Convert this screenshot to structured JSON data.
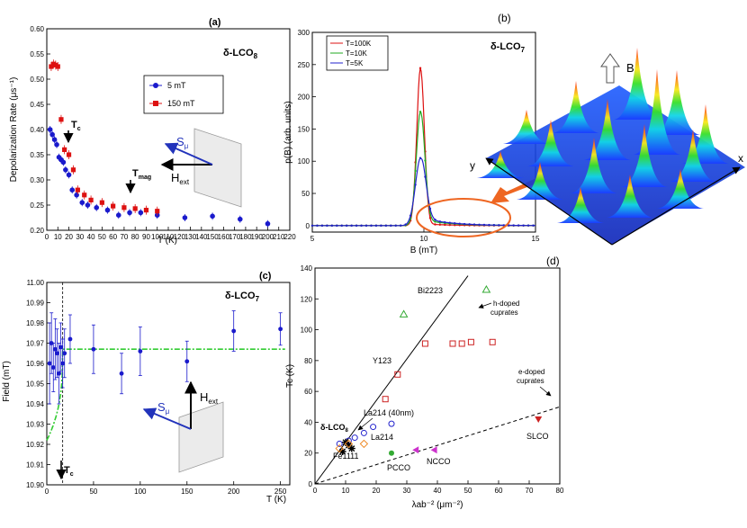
{
  "figure": {
    "panels": {
      "a": {
        "label": "(a)",
        "title": "δ-LCO",
        "title_sub": "8",
        "xlabel": "T (K)",
        "ylabel": "Depolarization Rate (μs⁻¹)",
        "legend": [
          "5 mT",
          "150 mT"
        ],
        "annotations": {
          "tc": "T",
          "tc_sub": "c",
          "tmag": "T",
          "tmag_sub": "mag",
          "s": "S",
          "s_sub": "μ",
          "h": "H",
          "h_sub": "ext"
        }
      },
      "b": {
        "label": "(b)",
        "title": "δ-LCO",
        "title_sub": "7",
        "xlabel": "B (mT)",
        "ylabel": "p(B) (arb. units)",
        "legend": [
          "T=100K",
          "T=10K",
          "T=5K"
        ],
        "annotations": {
          "b": "B",
          "x": "x",
          "y": "y"
        }
      },
      "c": {
        "label": "(c)",
        "title": "δ-LCO",
        "title_sub": "7",
        "xlabel": "T (K)",
        "ylabel": "Field (mT)",
        "annotations": {
          "tc": "T",
          "tc_sub": "c",
          "s": "S",
          "s_sub": "μ",
          "h": "H",
          "h_sub": "ext"
        }
      },
      "d": {
        "label": "(d)",
        "xlabel": "λab⁻² (μm⁻²)",
        "ylabel": "Tc (K)",
        "annotations": {
          "h_doped_1": "h-doped",
          "h_doped_2": "cuprates",
          "e_doped_1": "e-doped",
          "e_doped_2": "cuprates",
          "bi2223": "Bi2223",
          "y123": "Y123",
          "la214_40": "La214 (40nm)",
          "la214": "La214",
          "dlco": "δ-LCO",
          "dlco_sub": "8",
          "fe1111": "Fe1111",
          "pcco": "PCCO",
          "ncco": "NCCO",
          "slco": "SLCO"
        }
      }
    }
  },
  "chart_data": [
    {
      "id": "a",
      "type": "scatter",
      "title": "δ-LCO8",
      "xlabel": "T (K)",
      "ylabel": "Depolarization Rate (μs-1)",
      "xlim": [
        0,
        220
      ],
      "ylim": [
        0.2,
        0.6
      ],
      "xticks": [
        0,
        10,
        20,
        30,
        40,
        50,
        60,
        70,
        80,
        90,
        100,
        110,
        120,
        130,
        140,
        150,
        160,
        170,
        180,
        190,
        200,
        210,
        220
      ],
      "yticks": [
        0.2,
        0.25,
        0.3,
        0.35,
        0.4,
        0.45,
        0.5,
        0.55,
        0.6
      ],
      "xtick_labels": [
        "0",
        "10",
        "20",
        "30",
        "40",
        "50",
        "60",
        "70",
        "80",
        "90",
        "100",
        "110",
        "120",
        "130",
        "140",
        "150",
        "160",
        "170",
        "180",
        "190",
        "200",
        "210",
        "220"
      ],
      "ytick_labels": [
        "0.20",
        "0.25",
        "0.30",
        "0.35",
        "0.40",
        "0.45",
        "0.50",
        "0.55",
        "0.60"
      ],
      "series": [
        {
          "name": "5 mT",
          "color": "#1a1acc",
          "marker": "circle",
          "x": [
            3,
            5,
            7,
            9,
            11,
            13,
            15,
            17,
            20,
            23,
            27,
            32,
            37,
            45,
            55,
            65,
            75,
            85,
            100,
            125,
            150,
            175,
            200
          ],
          "y": [
            0.4,
            0.39,
            0.38,
            0.37,
            0.345,
            0.34,
            0.335,
            0.32,
            0.31,
            0.28,
            0.27,
            0.255,
            0.25,
            0.245,
            0.24,
            0.23,
            0.235,
            0.235,
            0.23,
            0.225,
            0.228,
            0.222,
            0.213
          ]
        },
        {
          "name": "150 mT",
          "color": "#dd1111",
          "marker": "square",
          "x": [
            4,
            6,
            8,
            10,
            13,
            16,
            20,
            24,
            28,
            34,
            40,
            50,
            60,
            70,
            80,
            90,
            100
          ],
          "y": [
            0.525,
            0.53,
            0.528,
            0.525,
            0.42,
            0.36,
            0.35,
            0.32,
            0.28,
            0.27,
            0.26,
            0.255,
            0.248,
            0.245,
            0.243,
            0.24,
            0.238
          ]
        }
      ]
    },
    {
      "id": "b",
      "type": "line",
      "title": "δ-LCO7",
      "xlabel": "B (mT)",
      "ylabel": "p(B) (arb. units)",
      "xlim": [
        5,
        15
      ],
      "ylim": [
        -10,
        300
      ],
      "yticks": [
        0,
        50,
        100,
        150,
        200,
        250,
        300
      ],
      "ytick_labels": [
        "0",
        "50",
        "100",
        "150",
        "200",
        "250",
        "300"
      ],
      "xticks": [
        5,
        10,
        15
      ],
      "xtick_labels": [
        "5",
        "10",
        "15"
      ],
      "series": [
        {
          "name": "T=100K",
          "color": "#dd1111",
          "peak_center": 9.85,
          "peak_width": 0.17,
          "peak_height": 243
        },
        {
          "name": "T=10K",
          "color": "#22aa22",
          "peak_center": 9.85,
          "peak_width": 0.19,
          "peak_height": 175
        },
        {
          "name": "T=5K",
          "color": "#2222cc",
          "peak_center": 9.85,
          "peak_width": 0.23,
          "peak_height": 103
        }
      ]
    },
    {
      "id": "c",
      "type": "scatter",
      "title": "δ-LCO7",
      "xlabel": "T (K)",
      "ylabel": "Field (mT)",
      "xlim": [
        0,
        260
      ],
      "ylim": [
        10.9,
        11.0
      ],
      "xticks": [
        0,
        50,
        100,
        150,
        200,
        250
      ],
      "xtick_labels": [
        "0",
        "50",
        "100",
        "150",
        "200",
        "250"
      ],
      "yticks": [
        10.9,
        10.91,
        10.92,
        10.93,
        10.94,
        10.95,
        10.96,
        10.97,
        10.98,
        10.99,
        11.0
      ],
      "ytick_labels": [
        "10.90",
        "10.91",
        "10.92",
        "10.93",
        "10.94",
        "10.95",
        "10.96",
        "10.97",
        "10.98",
        "10.99",
        "11.00"
      ],
      "fit_level": 10.967,
      "tc": 17,
      "series": [
        {
          "name": "data",
          "color": "#1a1acc",
          "x": [
            3,
            5,
            7,
            9,
            11,
            13,
            15,
            17,
            19,
            25,
            50,
            80,
            100,
            150,
            200,
            250
          ],
          "y": [
            10.96,
            10.97,
            10.958,
            10.967,
            10.965,
            10.955,
            10.968,
            10.96,
            10.965,
            10.972,
            10.967,
            10.955,
            10.966,
            10.961,
            10.976,
            10.977
          ],
          "err": [
            0.02,
            0.015,
            0.012,
            0.015,
            0.012,
            0.015,
            0.012,
            0.012,
            0.012,
            0.012,
            0.012,
            0.01,
            0.012,
            0.01,
            0.01,
            0.008
          ]
        }
      ]
    },
    {
      "id": "d",
      "type": "scatter",
      "xlabel": "λab-2 (μm-2)",
      "ylabel": "Tc (K)",
      "xlim": [
        0,
        80
      ],
      "ylim": [
        0,
        140
      ],
      "xticks": [
        0,
        10,
        20,
        30,
        40,
        50,
        60,
        70,
        80
      ],
      "xtick_labels": [
        "0",
        "10",
        "20",
        "30",
        "40",
        "50",
        "60",
        "70",
        "80"
      ],
      "yticks": [
        0,
        20,
        40,
        60,
        80,
        100,
        120,
        140
      ],
      "ytick_labels": [
        "0",
        "20",
        "40",
        "60",
        "80",
        "100",
        "120",
        "140"
      ],
      "lines": [
        {
          "name": "h-doped cuprates",
          "x": [
            0,
            50
          ],
          "y": [
            0,
            135
          ],
          "style": "solid"
        },
        {
          "name": "e-doped cuprates",
          "x": [
            0,
            80
          ],
          "y": [
            0,
            50
          ],
          "style": "dashed"
        }
      ],
      "series": [
        {
          "name": "Bi2223",
          "color": "#33aa33",
          "marker": "triangle-open",
          "x": [
            29,
            56
          ],
          "y": [
            110,
            126
          ]
        },
        {
          "name": "Y123",
          "color": "#cc2222",
          "marker": "square-open",
          "x": [
            23,
            27,
            36,
            45,
            48,
            51,
            58
          ],
          "y": [
            55,
            71,
            91,
            91,
            91,
            92,
            92
          ]
        },
        {
          "name": "La214 (40nm)",
          "color": "#2222cc",
          "marker": "circle-open",
          "x": [
            25
          ],
          "y": [
            39
          ]
        },
        {
          "name": "La214",
          "color": "#2222cc",
          "marker": "circle-open",
          "x": [
            8,
            11,
            13,
            16,
            19
          ],
          "y": [
            26,
            28,
            30,
            33,
            37
          ]
        },
        {
          "name": "δ-LCO8",
          "color": "#000000",
          "marker": "star",
          "x": [
            9,
            10,
            11,
            12
          ],
          "y": [
            21,
            27,
            25,
            23
          ]
        },
        {
          "name": "Fe1111",
          "color": "#ee8822",
          "marker": "diamond-open",
          "x": [
            8,
            11,
            16
          ],
          "y": [
            23,
            26,
            26
          ]
        },
        {
          "name": "PCCO",
          "color": "#33aa33",
          "marker": "circle-filled",
          "x": [
            25
          ],
          "y": [
            20
          ]
        },
        {
          "name": "NCCO",
          "color": "#cc33cc",
          "marker": "triangle-left",
          "x": [
            33,
            39
          ],
          "y": [
            22,
            22
          ]
        },
        {
          "name": "SLCO",
          "color": "#cc2222",
          "marker": "triangle-down",
          "x": [
            73
          ],
          "y": [
            42
          ]
        }
      ]
    }
  ],
  "colors": {
    "red": "#dd1111",
    "blue": "#1a1acc",
    "green": "#22aa22",
    "orange": "#ee6622",
    "fit_green": "#33cc33"
  }
}
